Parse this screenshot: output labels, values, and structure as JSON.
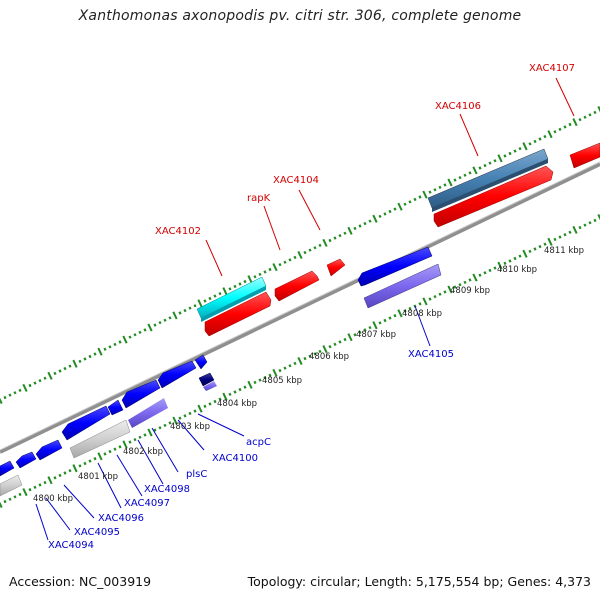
{
  "title": "Xanthomonas axonopodis pv. citri str. 306, complete genome",
  "accession": "Accession: NC_003919",
  "topology": "Topology: circular; Length: 5,175,554 bp; Genes: 4,373",
  "colors": {
    "forward_strand_gene": "#ff0000",
    "reverse_strand_gene": "#0000ff",
    "rna_or_special": "#00ffff",
    "operon_feature": "#7b68ee",
    "backbone": "#808080",
    "tick": "#228b22",
    "label_red": "#d40000",
    "label_blue": "#0000cc"
  },
  "kbp_ticks": [
    {
      "label": "4800 kbp"
    },
    {
      "label": "4801 kbp"
    },
    {
      "label": "4802 kbp"
    },
    {
      "label": "4803 kbp"
    },
    {
      "label": "4804 kbp"
    },
    {
      "label": "4805 kbp"
    },
    {
      "label": "4806 kbp"
    },
    {
      "label": "4807 kbp"
    },
    {
      "label": "4808 kbp"
    },
    {
      "label": "4809 kbp"
    },
    {
      "label": "4810 kbp"
    },
    {
      "label": "4811 kbp"
    }
  ],
  "top_labels": [
    {
      "text": "XAC4102"
    },
    {
      "text": "rapK"
    },
    {
      "text": "XAC4104"
    },
    {
      "text": "XAC4106"
    },
    {
      "text": "XAC4107"
    }
  ],
  "bottom_labels": [
    {
      "text": "XAC4094"
    },
    {
      "text": "XAC4095"
    },
    {
      "text": "XAC4096"
    },
    {
      "text": "XAC4097"
    },
    {
      "text": "XAC4098"
    },
    {
      "text": "plsC"
    },
    {
      "text": "XAC4100"
    },
    {
      "text": "acpC"
    },
    {
      "text": "XAC4105"
    }
  ]
}
